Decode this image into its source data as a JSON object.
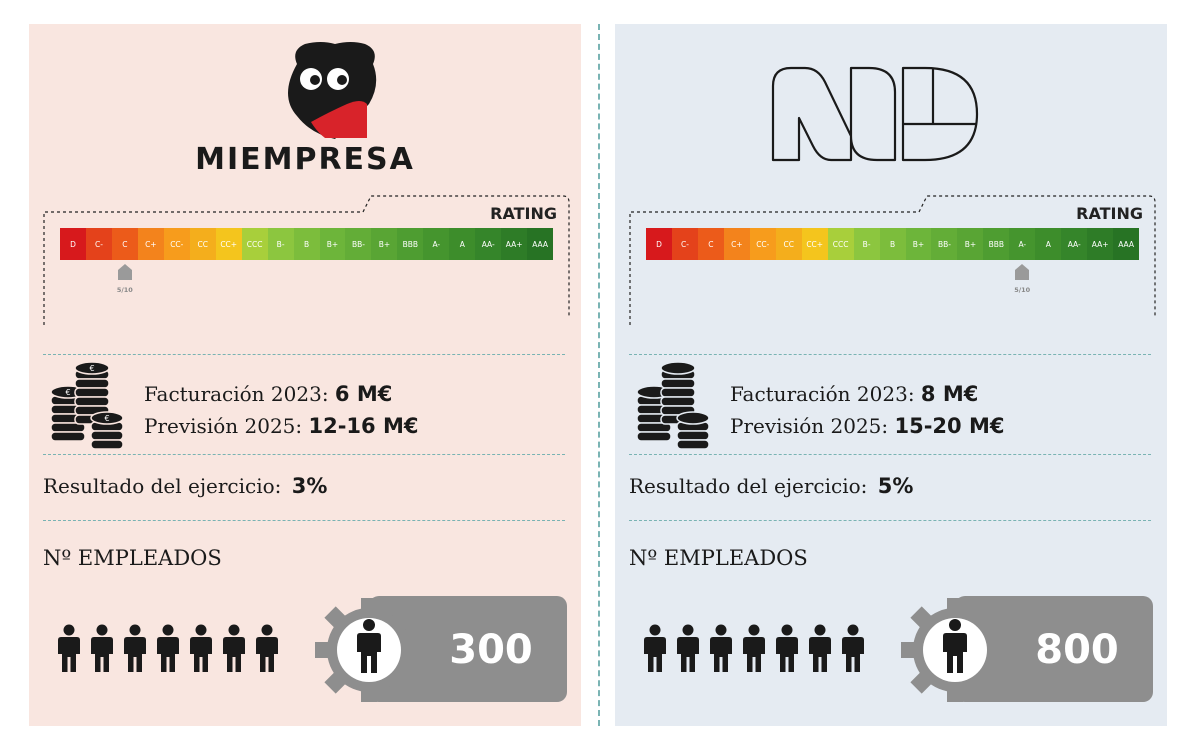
{
  "rating_scale": [
    "D",
    "C-",
    "C",
    "C+",
    "CC-",
    "CC",
    "CC+",
    "CCC",
    "B-",
    "B",
    "B+",
    "BB-",
    "B+",
    "BBB",
    "A-",
    "A",
    "AA-",
    "AA+",
    "AAA"
  ],
  "rating_colors": [
    "#d7191c",
    "#e4421b",
    "#ec5b1a",
    "#f3831c",
    "#f79c1c",
    "#f4ae1c",
    "#f4c51d",
    "#a8cf3b",
    "#8cc63f",
    "#7cbd3c",
    "#6db53a",
    "#63ad37",
    "#59a534",
    "#4e9d31",
    "#45952e",
    "#3d8d2b",
    "#35852a",
    "#2e7c27",
    "#277324"
  ],
  "companies": [
    {
      "brand": "MIEMPRESA",
      "rating_title": "RATING",
      "rating_index": 2,
      "rating_score": "5/10",
      "facturacion_label": "Facturación 2023:",
      "facturacion_value": "6 M€",
      "prevision_label": "Previsión 2025:",
      "prevision_value": "12-16 M€",
      "resultado_label": "Resultado del ejercicio:",
      "resultado_value": "3%",
      "empleados_label": "Nº EMPLEADOS",
      "empleados_value": "300",
      "accent": "#d8232a"
    },
    {
      "brand": "",
      "rating_title": "RATING",
      "rating_index": 14,
      "rating_score": "5/10",
      "facturacion_label": "Facturación 2023:",
      "facturacion_value": "8 M€",
      "prevision_label": "Previsión 2025:",
      "prevision_value": "15-20 M€",
      "resultado_label": "Resultado del ejercicio:",
      "resultado_value": "5%",
      "empleados_label": "Nº EMPLEADOS",
      "empleados_value": "800"
    }
  ],
  "icons": {
    "coins": "coins-stack-icon",
    "person": "person-icon",
    "gear": "gear-icon",
    "owl": "owl-logo-icon",
    "nd": "nd-logo-icon"
  }
}
